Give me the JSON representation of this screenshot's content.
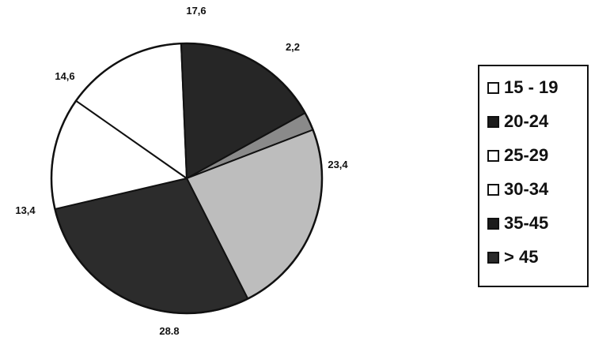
{
  "chart_data": {
    "type": "pie",
    "start_angle_deg": 61,
    "direction": "clockwise",
    "slices": [
      {
        "category": "15 - 19",
        "value": 2.2,
        "label": "2,2",
        "color": "#8a8a8a"
      },
      {
        "category": "35-45",
        "value": 23.4,
        "label": "23,4",
        "color": "#bdbdbd"
      },
      {
        "category": "20-24",
        "value": 28.8,
        "label": "28.8",
        "color": "#2c2c2c"
      },
      {
        "category": "25-29",
        "value": 13.4,
        "label": "13,4",
        "color": "#ffffff"
      },
      {
        "category": "30-34",
        "value": 14.6,
        "label": "14,6",
        "color": "#ffffff"
      },
      {
        "category": "> 45",
        "value": 17.6,
        "label": "17,6",
        "color": "#262626"
      }
    ],
    "legend": {
      "placement": "right",
      "entries": [
        {
          "label": "15 - 19",
          "swatch": "#ffffff"
        },
        {
          "label": "20-24",
          "swatch": "#1c1c1c"
        },
        {
          "label": "25-29",
          "swatch": "#ffffff"
        },
        {
          "label": "30-34",
          "swatch": "#ffffff"
        },
        {
          "label": "35-45",
          "swatch": "#1c1c1c"
        },
        {
          "label": "> 45",
          "swatch": "#2a2a2a"
        }
      ]
    }
  }
}
